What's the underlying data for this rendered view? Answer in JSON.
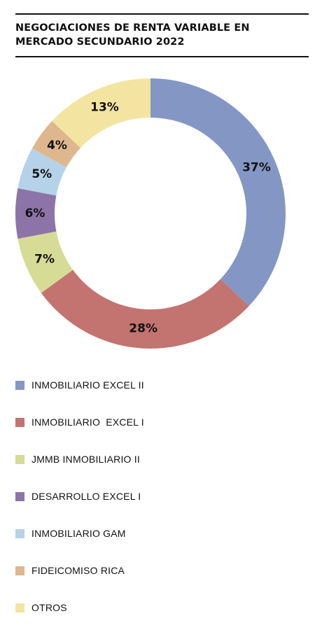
{
  "title_line1": "NEGOCIACIONES DE RENTA VARIABLE EN",
  "title_line2": "MERCADO SECUNDARIO 2022",
  "chart_data": {
    "type": "pie",
    "variant": "donut",
    "title": "NEGOCIACIONES DE RENTA VARIABLE EN MERCADO SECUNDARIO 2022",
    "unit": "%",
    "start_angle_deg": 0,
    "direction": "clockwise",
    "legend_position": "bottom",
    "slices": [
      {
        "label": "INMOBILIARIO EXCEL II",
        "value": 37,
        "display": "37%",
        "color": "#8497c4"
      },
      {
        "label": "INMOBILIARIO  EXCEL I",
        "value": 28,
        "display": "28%",
        "color": "#c37470"
      },
      {
        "label": "JMMB INMOBILIARIO II",
        "value": 7,
        "display": "7%",
        "color": "#d6db96"
      },
      {
        "label": "DESARROLLO EXCEL I",
        "value": 6,
        "display": "6%",
        "color": "#8d74a8"
      },
      {
        "label": "INMOBILIARIO GAM",
        "value": 5,
        "display": "5%",
        "color": "#b5d2e8"
      },
      {
        "label": "FIDEICOMISO RICA",
        "value": 4,
        "display": "4%",
        "color": "#deb78e"
      },
      {
        "label": "OTROS",
        "value": 13,
        "display": "13%",
        "color": "#f3e4a2"
      }
    ]
  }
}
